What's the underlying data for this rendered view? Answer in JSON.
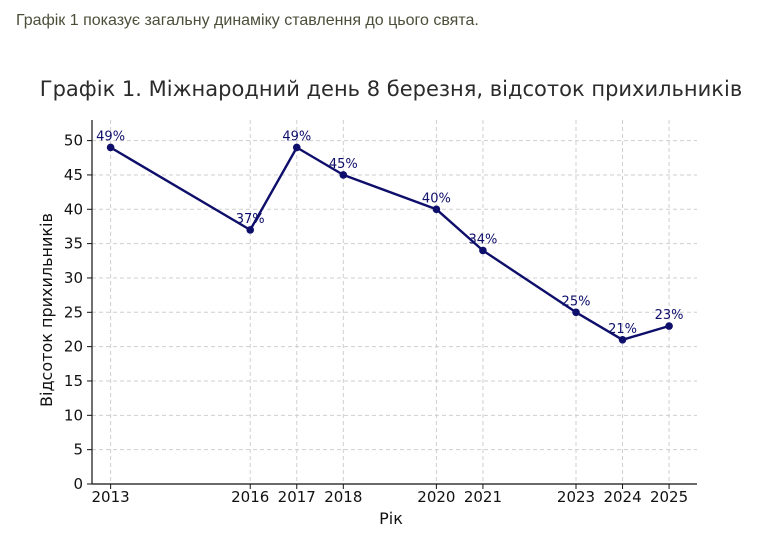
{
  "intro_text": "Графік 1 показує загальну динаміку ставлення до цього свята.",
  "chart_data": {
    "type": "line",
    "title": "Графік 1. Міжнародний день 8 березня, відсоток прихильників",
    "xlabel": "Рік",
    "ylabel": "Відсоток прихильників",
    "x": [
      2013,
      2016,
      2017,
      2018,
      2020,
      2021,
      2023,
      2024,
      2025
    ],
    "values": [
      49,
      37,
      49,
      45,
      40,
      34,
      25,
      21,
      23
    ],
    "data_labels": [
      "49%",
      "37%",
      "49%",
      "45%",
      "40%",
      "34%",
      "25%",
      "21%",
      "23%"
    ],
    "xlim": [
      2012.6,
      2025.6
    ],
    "ylim": [
      0,
      53
    ],
    "yticks": [
      0,
      5,
      10,
      15,
      20,
      25,
      30,
      35,
      40,
      45,
      50
    ],
    "grid": true,
    "line_color": "#0e0e6b"
  }
}
